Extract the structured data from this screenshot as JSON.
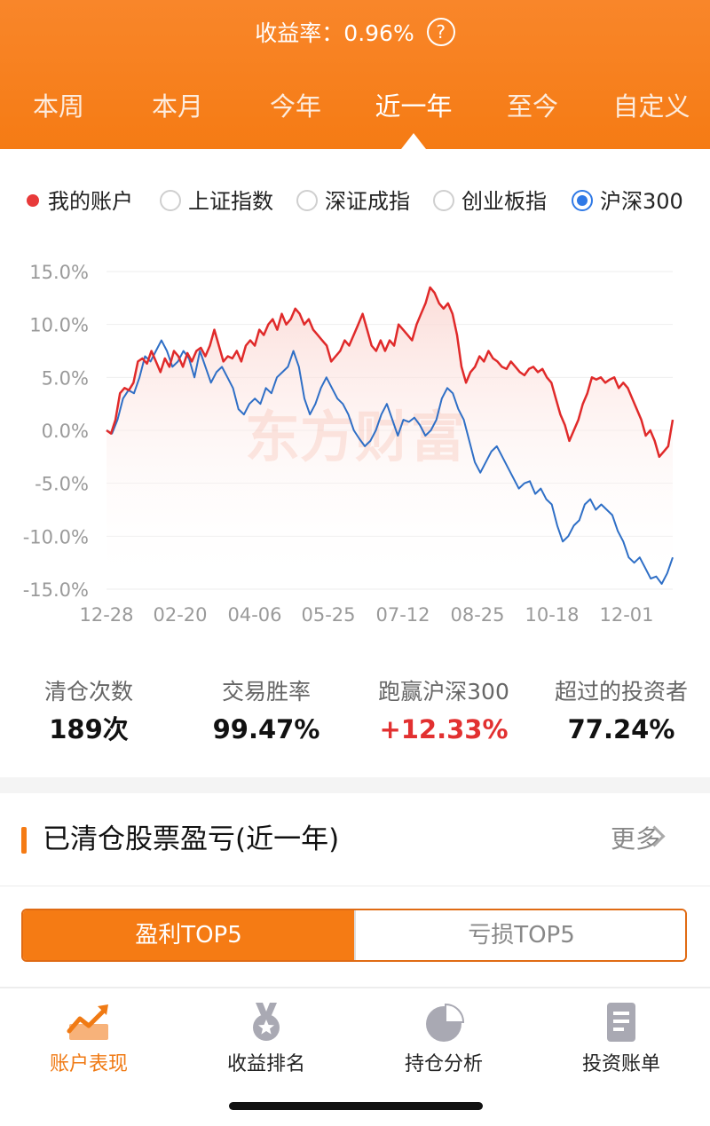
{
  "header": {
    "rate_label": "收益率：",
    "rate_value": "0.96%",
    "help": "?",
    "tabs": [
      {
        "label": "本周",
        "active": false
      },
      {
        "label": "本月",
        "active": false
      },
      {
        "label": "今年",
        "active": false
      },
      {
        "label": "近一年",
        "active": true
      },
      {
        "label": "至今",
        "active": false
      },
      {
        "label": "自定义",
        "active": false
      }
    ]
  },
  "legend": {
    "items": [
      {
        "label": "我的账户",
        "type": "dot"
      },
      {
        "label": "上证指数",
        "type": "radio",
        "selected": false
      },
      {
        "label": "深证成指",
        "type": "radio",
        "selected": false
      },
      {
        "label": "创业板指",
        "type": "radio",
        "selected": false
      },
      {
        "label": "沪深300",
        "type": "radio",
        "selected": true
      }
    ]
  },
  "watermark": "东方财富",
  "chart_data": {
    "type": "line",
    "ylim": [
      -15,
      15
    ],
    "y_ticks": [
      "15.0%",
      "10.0%",
      "5.0%",
      "0.0%",
      "-5.0%",
      "-10.0%",
      "-15.0%"
    ],
    "x_ticks": [
      "12-28",
      "02-20",
      "04-06",
      "05-25",
      "07-12",
      "08-25",
      "10-18",
      "12-01"
    ],
    "grid": true,
    "colors": {
      "account": "#e02a2a",
      "index": "#2f6fc6"
    },
    "series": [
      {
        "name": "我的账户",
        "values": [
          0,
          -0.3,
          1,
          3.5,
          4,
          3.8,
          4.5,
          6.5,
          6.8,
          6.3,
          7.5,
          6.5,
          5.5,
          6.8,
          6,
          7.5,
          7,
          6,
          7.3,
          6.5,
          7.5,
          7.8,
          7,
          8,
          9.5,
          8,
          6.5,
          7,
          6.8,
          7.5,
          6.5,
          8,
          8.5,
          8,
          9.5,
          9,
          10,
          10.5,
          9.5,
          11,
          10,
          10.5,
          11.5,
          11,
          10,
          10.5,
          9.5,
          9,
          8.5,
          8,
          6.5,
          7,
          7.5,
          8.5,
          8,
          9,
          10,
          11,
          9.5,
          8,
          7.5,
          8.5,
          7.5,
          8.5,
          8,
          10,
          9.5,
          9,
          8.5,
          10,
          11,
          12,
          13.5,
          13,
          12,
          11.5,
          12,
          11,
          9,
          6,
          4.5,
          5.5,
          6,
          7,
          6.5,
          7.5,
          6.8,
          6.5,
          6,
          5.8,
          6.5,
          6,
          5.5,
          5.2,
          5.8,
          6,
          5.5,
          5.8,
          5,
          4.5,
          3,
          1.5,
          0.5,
          -1,
          0,
          1,
          2.5,
          3.5,
          5,
          4.8,
          5,
          4.5,
          4.8,
          5,
          4,
          4.5,
          4,
          3,
          2,
          1,
          -0.5,
          0,
          -1,
          -2.5,
          -2,
          -1.5,
          1
        ],
        "color": "#e02a2a"
      },
      {
        "name": "沪深300",
        "values": [
          0,
          -0.3,
          1,
          3,
          3.8,
          3.5,
          5,
          7,
          6.5,
          7.5,
          8.5,
          7.5,
          6,
          6.5,
          7.5,
          6.8,
          5,
          7.5,
          6,
          4.5,
          5.5,
          6,
          5,
          4,
          2,
          1.5,
          2.5,
          3,
          2.5,
          4,
          3.5,
          5,
          5.5,
          6,
          7.5,
          6,
          3,
          1.5,
          2.5,
          4,
          5,
          4,
          3,
          2.5,
          1.5,
          0,
          -0.8,
          -1.5,
          -1,
          0,
          1.5,
          2.5,
          1,
          -0.5,
          1,
          0.8,
          1.2,
          0.5,
          -0.5,
          0,
          1,
          3,
          4,
          3.5,
          2,
          1,
          -1,
          -3,
          -4,
          -3,
          -2,
          -1.5,
          -2.5,
          -3.5,
          -4.5,
          -5.5,
          -5,
          -4.8,
          -6,
          -5.5,
          -6.5,
          -7,
          -9,
          -10.5,
          -10,
          -9,
          -8.5,
          -7,
          -6.5,
          -7.5,
          -7,
          -7.5,
          -8,
          -9.5,
          -10.5,
          -12,
          -12.5,
          -12,
          -13,
          -14,
          -13.8,
          -14.5,
          -13.5,
          -12
        ],
        "color": "#2f6fc6"
      }
    ]
  },
  "stats": [
    {
      "label": "清仓次数",
      "value": "189次",
      "highlight": false
    },
    {
      "label": "交易胜率",
      "value": "99.47%",
      "highlight": false
    },
    {
      "label": "跑赢沪深300",
      "value": "+12.33%",
      "highlight": true
    },
    {
      "label": "超过的投资者",
      "value": "77.24%",
      "highlight": false
    }
  ],
  "section": {
    "title": "已清仓股票盈亏(近一年)",
    "more": "更多"
  },
  "segment": {
    "profit": "盈利TOP5",
    "loss": "亏损TOP5"
  },
  "tabbar": {
    "items": [
      {
        "label": "账户表现",
        "icon": "trend-chart-icon",
        "active": true
      },
      {
        "label": "收益排名",
        "icon": "medal-icon",
        "active": false
      },
      {
        "label": "持仓分析",
        "icon": "pie-chart-icon",
        "active": false
      },
      {
        "label": "投资账单",
        "icon": "document-icon",
        "active": false
      }
    ]
  }
}
